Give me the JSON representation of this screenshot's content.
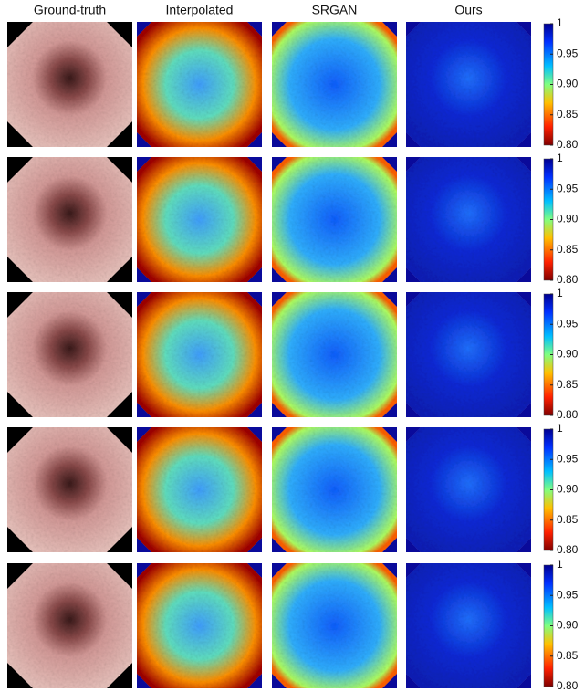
{
  "columns": [
    "Ground-truth",
    "Interpolated",
    "SRGAN",
    "Ours"
  ],
  "colorbar": {
    "lim": [
      0.8,
      1
    ],
    "ticks": [
      1,
      0.95,
      {
        "value": 0.9,
        "label": "0.90"
      },
      0.85,
      {
        "value": 0.8,
        "label": "0.80"
      }
    ]
  }
}
